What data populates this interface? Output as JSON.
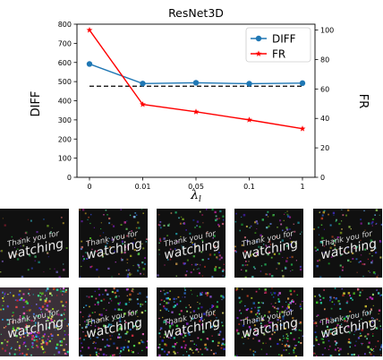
{
  "chart_data": {
    "type": "line",
    "title": "ResNet3D",
    "xlabel": "λl",
    "xlabel_main": "λ",
    "xlabel_sub": "l",
    "ylabel_left": "DIFF",
    "ylabel_right": "FR",
    "categories": [
      "0",
      "0.01",
      "0.05",
      "0.1",
      "1"
    ],
    "series": [
      {
        "name": "DIFF",
        "axis": "left",
        "color": "#1f77b4",
        "marker": "circle",
        "values": [
          592,
          490,
          494,
          489,
          492
        ]
      },
      {
        "name": "FR",
        "axis": "right",
        "color": "#ff0000",
        "marker": "star",
        "values": [
          100,
          49.5,
          44.5,
          39,
          33
        ]
      }
    ],
    "baseline": {
      "axis": "left",
      "value": 476,
      "style": "dashed",
      "color": "#000000"
    },
    "ylim_left": [
      0,
      800
    ],
    "yticks_left": [
      "0",
      "100",
      "200",
      "300",
      "400",
      "500",
      "600",
      "700",
      "800"
    ],
    "ylim_right": [
      0,
      104
    ],
    "yticks_right": [
      "0",
      "20",
      "40",
      "60",
      "80",
      "100"
    ],
    "legend": {
      "position": "top-right",
      "items": [
        "DIFF",
        "FR"
      ]
    }
  },
  "image_grid": {
    "caption_lines": [
      "Thank you for",
      "watching"
    ],
    "rows": [
      {
        "noise_levels": [
          0.18,
          0.45,
          0.45,
          0.45,
          0.45
        ]
      },
      {
        "noise_levels": [
          1.0,
          0.75,
          0.75,
          0.75,
          0.7
        ]
      }
    ]
  }
}
